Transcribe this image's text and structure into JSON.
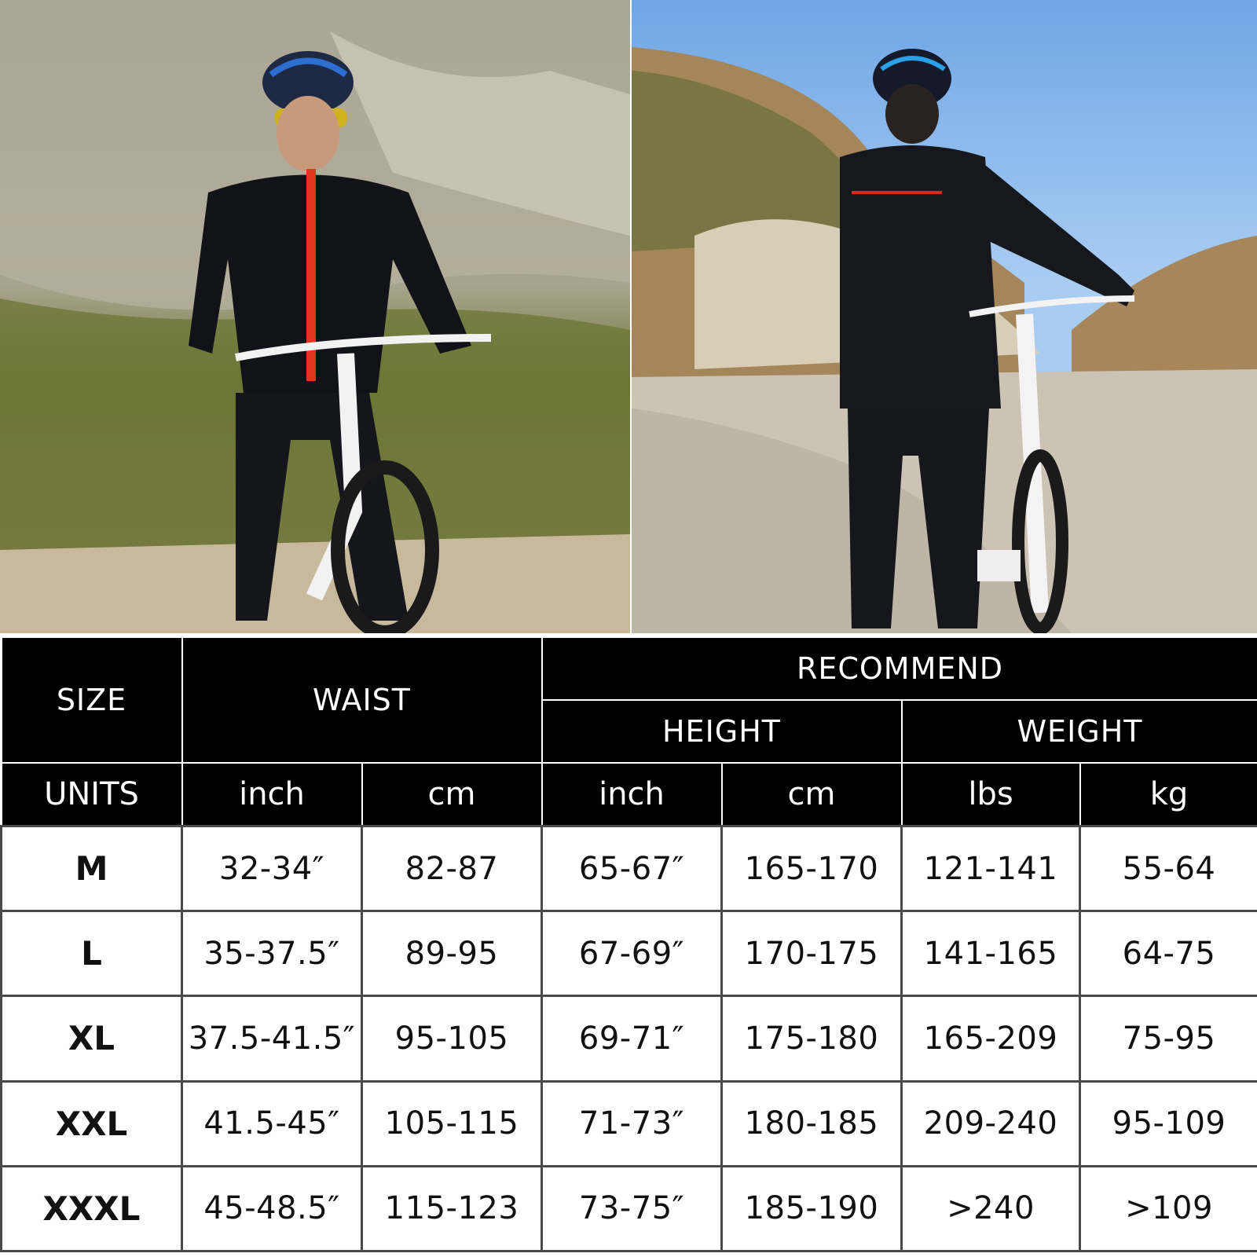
{
  "photos": [
    {
      "name": "cyclist-front-photo",
      "icon": "cyclist-riding-photo"
    },
    {
      "name": "cyclist-back-photo",
      "icon": "cyclist-standing-back-photo"
    }
  ],
  "colors": {
    "header_bg": "#000000",
    "header_text": "#ffffff",
    "body_text": "#111111",
    "grid": "#4a4a4a"
  },
  "table": {
    "headers": {
      "size": "SIZE",
      "waist": "WAIST",
      "recommend": "RECOMMEND",
      "height": "HEIGHT",
      "weight": "WEIGHT"
    },
    "units": {
      "label": "UNITS",
      "waist_inch": "inch",
      "waist_cm": "cm",
      "height_inch": "inch",
      "height_cm": "cm",
      "weight_lbs": "lbs",
      "weight_kg": "kg"
    },
    "rows": [
      {
        "size": "M",
        "waist_in": "32-34″",
        "waist_cm": "82-87",
        "height_in": "65-67″",
        "height_cm": "165-170",
        "weight_lbs": "121-141",
        "weight_kg": "55-64"
      },
      {
        "size": "L",
        "waist_in": "35-37.5″",
        "waist_cm": "89-95",
        "height_in": "67-69″",
        "height_cm": "170-175",
        "weight_lbs": "141-165",
        "weight_kg": "64-75"
      },
      {
        "size": "XL",
        "waist_in": "37.5-41.5″",
        "waist_cm": "95-105",
        "height_in": "69-71″",
        "height_cm": "175-180",
        "weight_lbs": "165-209",
        "weight_kg": "75-95"
      },
      {
        "size": "XXL",
        "waist_in": "41.5-45″",
        "waist_cm": "105-115",
        "height_in": "71-73″",
        "height_cm": "180-185",
        "weight_lbs": "209-240",
        "weight_kg": "95-109"
      },
      {
        "size": "XXXL",
        "waist_in": "45-48.5″",
        "waist_cm": "115-123",
        "height_in": "73-75″",
        "height_cm": "185-190",
        "weight_lbs": ">240",
        "weight_kg": ">109"
      }
    ]
  }
}
